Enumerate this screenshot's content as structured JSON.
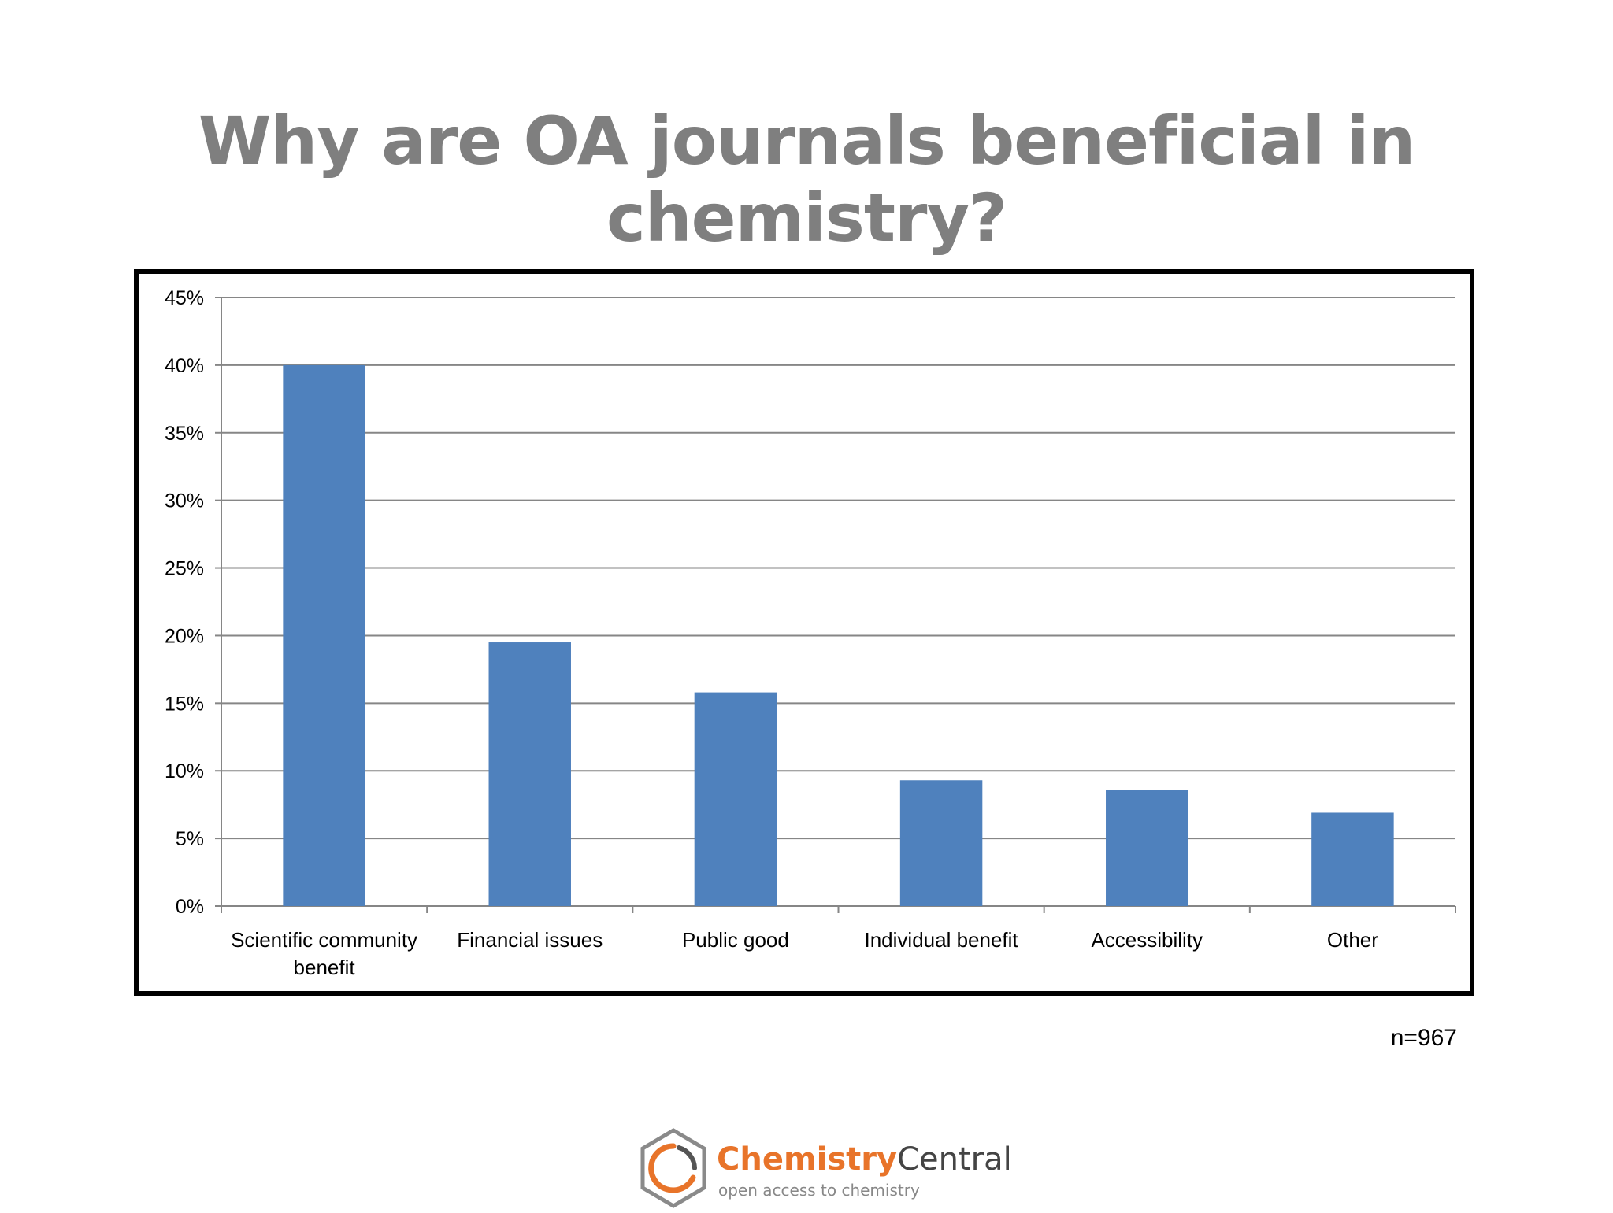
{
  "slide": {
    "title": "Why are OA journals beneficial in chemistry?",
    "sample_note": "n=967"
  },
  "logo": {
    "name_part1": "Chemistry",
    "name_part2": "Central",
    "tagline": "open access to chemistry"
  },
  "colors": {
    "bar": "#4f81bd",
    "title": "#7f7f7f",
    "grid": "#868686",
    "logo_orange": "#e8742a"
  },
  "chart_data": {
    "type": "bar",
    "title": "",
    "xlabel": "",
    "ylabel": "",
    "ylim": [
      0,
      45
    ],
    "y_ticks": [
      "0%",
      "5%",
      "10%",
      "15%",
      "20%",
      "25%",
      "30%",
      "35%",
      "40%",
      "45%"
    ],
    "grid": true,
    "legend": "none",
    "categories": [
      [
        "Scientific community",
        "benefit"
      ],
      [
        "Financial issues"
      ],
      [
        "Public good"
      ],
      [
        "Individual benefit"
      ],
      [
        "Accessibility"
      ],
      [
        "Other"
      ]
    ],
    "values": [
      40.0,
      19.5,
      15.8,
      9.3,
      8.6,
      6.9
    ]
  }
}
